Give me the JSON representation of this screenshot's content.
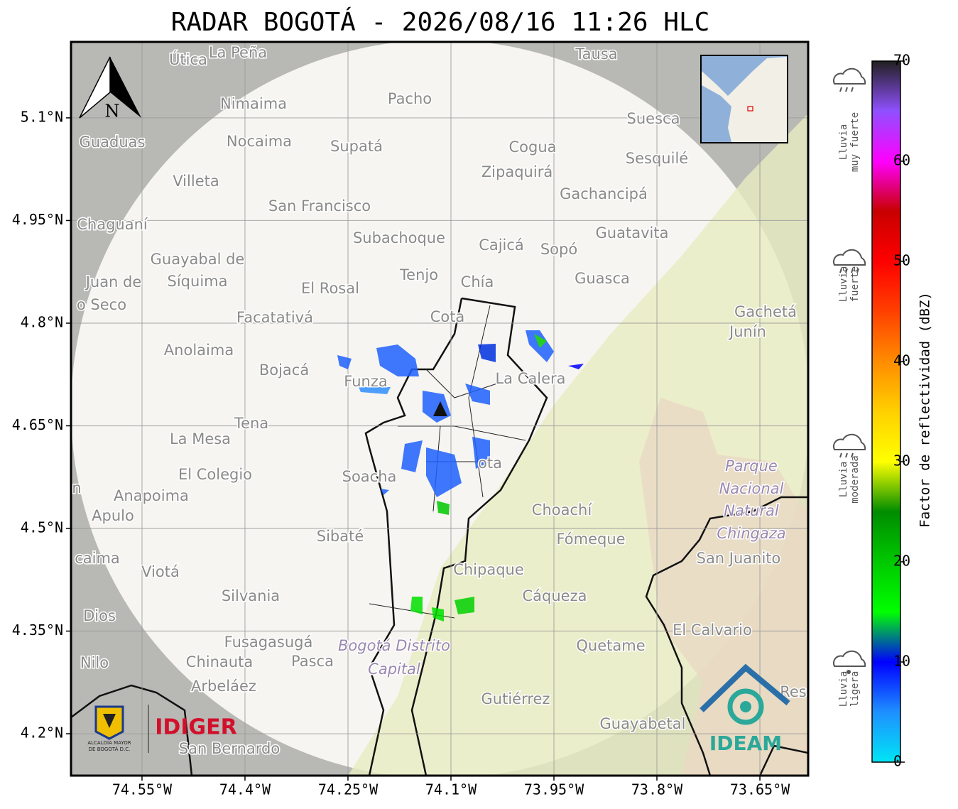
{
  "title": "RADAR BOGOTÁ - 2026/08/16 11:26 HLC",
  "map": {
    "xlim": [
      -74.6534,
      -73.5797
    ],
    "ylim": [
      4.1388,
      5.211
    ],
    "xticks": [
      {
        "value": -74.55,
        "label": "74.55°W"
      },
      {
        "value": -74.4,
        "label": "74.4°W"
      },
      {
        "value": -74.25,
        "label": "74.25°W"
      },
      {
        "value": -74.1,
        "label": "74.1°W"
      },
      {
        "value": -73.95,
        "label": "73.95°W"
      },
      {
        "value": -73.8,
        "label": "73.8°W"
      },
      {
        "value": -73.65,
        "label": "73.65°W"
      }
    ],
    "yticks": [
      {
        "value": 4.2,
        "label": "4.2°N"
      },
      {
        "value": 4.35,
        "label": "4.35°N"
      },
      {
        "value": 4.5,
        "label": "4.5°N"
      },
      {
        "value": 4.65,
        "label": "4.65°N"
      },
      {
        "value": 4.8,
        "label": "4.8°N"
      },
      {
        "value": 4.95,
        "label": "4.95°N"
      },
      {
        "value": 5.1,
        "label": "5.1°N"
      }
    ],
    "grid": true,
    "north_label": "N",
    "places": [
      "Útica",
      "La Peña",
      "Tausa",
      "Pacho",
      "Nimaima",
      "Suesca",
      "Guaduas",
      "Nocaima",
      "Supatá",
      "Cogua",
      "Sesquilé",
      "Zipaquirá",
      "Villeta",
      "Gachancipá",
      "San Francisco",
      "Guatavita",
      "Chaguaní",
      "Subachoque",
      "Cajicá",
      "Sopó",
      "Guayabal de",
      "Síquima",
      "Tenjo",
      "Guasca",
      "Juan de",
      "El Rosal",
      "Chía",
      "o Seco",
      "Gachetá",
      "Junín",
      "Facatativá",
      "Cota",
      "Anolaima",
      "Bojacá",
      "Funza",
      "La Calera",
      "Tena",
      "La Mesa",
      "El Colegio",
      "Soacha",
      "Anapoima",
      "Apulo",
      "Choachí",
      "Sibaté",
      "Fómeque",
      "San Juanito",
      "caima",
      "Viotá",
      "Chipaque",
      "Silvania",
      "Cáqueza",
      "Dios",
      "El Calvario",
      "Fusagasugá",
      "Quetame",
      "Nilo",
      "Chinauta",
      "Pasca",
      "Arbeláez",
      "Gutiérrez",
      "Res",
      "Guayabetal",
      "San Bernardo",
      "n",
      "ota"
    ],
    "italic_places": [
      "Parque",
      "Nacional",
      "Natural",
      "Chingaza",
      "Bogotá Distrito",
      "Capital"
    ]
  },
  "colorbar": {
    "label": "Factor de reflectividad (dBZ)",
    "lim": [
      0,
      70
    ],
    "ticks": [
      0,
      10,
      20,
      30,
      40,
      50,
      60,
      70
    ],
    "colors": [
      "#00e5f5",
      "#1e90ff",
      "#0000ff",
      "#00ff00",
      "#00c800",
      "#008c00",
      "#ffff00",
      "#ffd000",
      "#ff8c00",
      "#ff4000",
      "#ff0000",
      "#c80000",
      "#ff00ff",
      "#9050ff",
      "#202020"
    ]
  },
  "legend": [
    {
      "lines": [
        "Lluvia",
        "muy fuerte"
      ]
    },
    {
      "lines": [
        "Lluvia",
        "fuerte"
      ]
    },
    {
      "lines": [
        "Lluvia",
        "moderada"
      ]
    },
    {
      "lines": [
        "Lluvia",
        "ligera"
      ]
    }
  ],
  "logos": {
    "alcaldia": [
      "ALCALDÍA MAYOR",
      "DE BOGOTÁ D.C."
    ],
    "idiger": "IDIGER",
    "ideam": "IDEAM"
  }
}
